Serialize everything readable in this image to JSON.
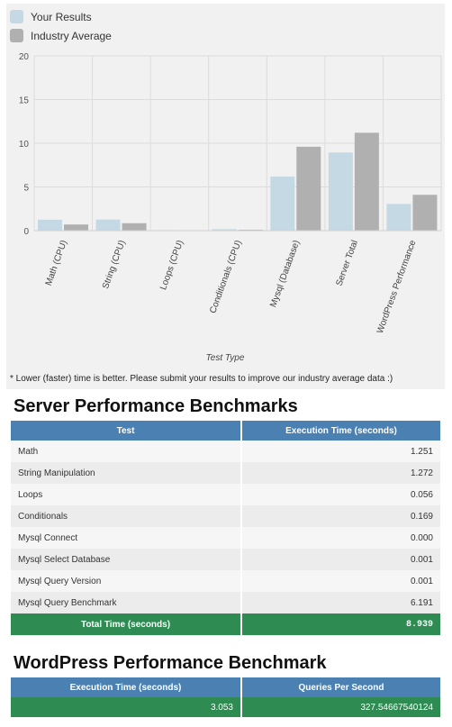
{
  "legend": {
    "your_results": "Your Results",
    "industry_average": "Industry Average"
  },
  "colors": {
    "your_results": "#c5d9e4",
    "industry_average": "#b0b0b0",
    "header_blue": "#4a81b2",
    "total_green": "#2e8b52"
  },
  "chart_data": {
    "type": "bar",
    "xlabel": "Test Type",
    "ylabel": "",
    "ylim": [
      0,
      20
    ],
    "yticks": [
      0,
      5,
      10,
      15,
      20
    ],
    "grid": true,
    "legend_position": "top-left",
    "categories": [
      "Math (CPU)",
      "String (CPU)",
      "Loops (CPU)",
      "Conditionals (CPU)",
      "Mysql (Database)",
      "Server Total",
      "WordPress Performance"
    ],
    "series": [
      {
        "name": "Your Results",
        "values": [
          1.25,
          1.27,
          0.06,
          0.17,
          6.19,
          8.94,
          3.05
        ]
      },
      {
        "name": "Industry Average",
        "values": [
          0.7,
          0.85,
          0.03,
          0.1,
          9.6,
          11.2,
          4.1
        ]
      }
    ]
  },
  "note": "* Lower (faster) time is better. Please submit your results to improve our industry average data :)",
  "server": {
    "title": "Server Performance Benchmarks",
    "col_test": "Test",
    "col_time": "Execution Time (seconds)",
    "rows": [
      {
        "test": "Math",
        "time": "1.251"
      },
      {
        "test": "String Manipulation",
        "time": "1.272"
      },
      {
        "test": "Loops",
        "time": "0.056"
      },
      {
        "test": "Conditionals",
        "time": "0.169"
      },
      {
        "test": "Mysql Connect",
        "time": "0.000"
      },
      {
        "test": "Mysql Select Database",
        "time": "0.001"
      },
      {
        "test": "Mysql Query Version",
        "time": "0.001"
      },
      {
        "test": "Mysql Query Benchmark",
        "time": "6.191"
      }
    ],
    "total_label": "Total Time (seconds)",
    "total_value": "8.939"
  },
  "wordpress": {
    "title": "WordPress Performance Benchmark",
    "col_time": "Execution Time (seconds)",
    "col_qps": "Queries Per Second",
    "time": "3.053",
    "qps": "327.54667540124"
  }
}
